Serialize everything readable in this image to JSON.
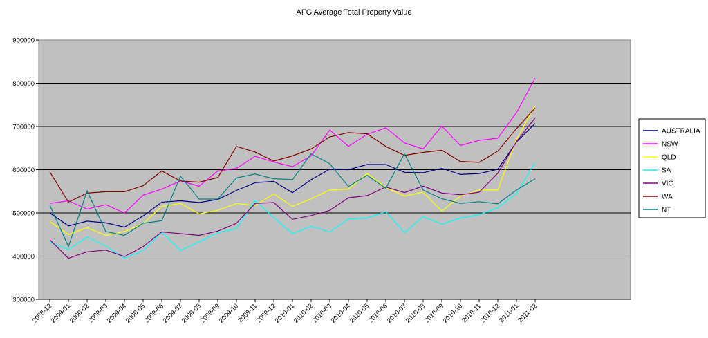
{
  "chart_data": {
    "type": "line",
    "title": "AFG Average Total Property Value",
    "xlabel": "",
    "ylabel": "",
    "ylim": [
      300000,
      900000
    ],
    "yticks": [
      300000,
      400000,
      500000,
      600000,
      700000,
      800000,
      900000
    ],
    "grid": true,
    "legend_position": "right",
    "plot_background": "#c0c0c0",
    "x": [
      "2008-12",
      "2009-01",
      "2009-02",
      "2009-03",
      "2009-04",
      "2009-05",
      "2009-06",
      "2009-07",
      "2009-08",
      "2009-09",
      "2009-10",
      "2009-11",
      "2009-12",
      "2010-01",
      "2010-02",
      "2010-03",
      "2010-04",
      "2010-05",
      "2010-06",
      "2010-07",
      "2010-08",
      "2010-09",
      "2010-10",
      "2010-11",
      "2010-12",
      "2011-01",
      "2011-02"
    ],
    "series": [
      {
        "name": "AUSTRALIA",
        "color": "#000080",
        "values": [
          500000,
          470000,
          481000,
          477000,
          467000,
          493000,
          525000,
          528000,
          524000,
          531000,
          552000,
          570000,
          573000,
          547000,
          577000,
          601000,
          600000,
          612000,
          612000,
          594000,
          593000,
          603000,
          589000,
          591000,
          601000,
          664000,
          707000
        ]
      },
      {
        "name": "NSW",
        "color": "#ff00ff",
        "values": [
          522000,
          528000,
          509000,
          519000,
          500000,
          541000,
          555000,
          574000,
          562000,
          597000,
          603000,
          631000,
          618000,
          607000,
          632000,
          692000,
          654000,
          682000,
          697000,
          662000,
          648000,
          701000,
          656000,
          668000,
          673000,
          732000,
          812000
        ]
      },
      {
        "name": "QLD",
        "color": "#ffff00",
        "values": [
          480000,
          450000,
          466000,
          448000,
          457000,
          475000,
          515000,
          522000,
          498000,
          506000,
          522000,
          517000,
          544000,
          515000,
          533000,
          553000,
          555000,
          591000,
          559000,
          539000,
          548000,
          504000,
          539000,
          553000,
          553000,
          670000,
          748000
        ]
      },
      {
        "name": "SA",
        "color": "#00ffff",
        "values": [
          432000,
          415000,
          444000,
          423000,
          395000,
          413000,
          455000,
          413000,
          433000,
          454000,
          464000,
          529000,
          489000,
          452000,
          469000,
          456000,
          486000,
          488000,
          503000,
          454000,
          491000,
          474000,
          488000,
          496000,
          512000,
          545000,
          616000
        ]
      },
      {
        "name": "VIC",
        "color": "#800080",
        "values": [
          438000,
          395000,
          410000,
          414000,
          399000,
          422000,
          456000,
          452000,
          448000,
          458000,
          476000,
          522000,
          524000,
          485000,
          494000,
          506000,
          535000,
          540000,
          560000,
          547000,
          562000,
          546000,
          542000,
          548000,
          592000,
          665000,
          720000
        ]
      },
      {
        "name": "WA",
        "color": "#800000",
        "values": [
          595000,
          525000,
          546000,
          549000,
          549000,
          563000,
          597000,
          574000,
          571000,
          582000,
          654000,
          641000,
          620000,
          632000,
          648000,
          676000,
          686000,
          683000,
          654000,
          633000,
          640000,
          645000,
          619000,
          617000,
          643000,
          695000,
          743000
        ]
      },
      {
        "name": "NT",
        "color": "#008080",
        "values": [
          518000,
          422000,
          551000,
          457000,
          448000,
          476000,
          482000,
          585000,
          532000,
          532000,
          581000,
          590000,
          579000,
          577000,
          637000,
          614000,
          561000,
          587000,
          557000,
          637000,
          553000,
          533000,
          522000,
          526000,
          521000,
          553000,
          579000
        ]
      }
    ]
  }
}
